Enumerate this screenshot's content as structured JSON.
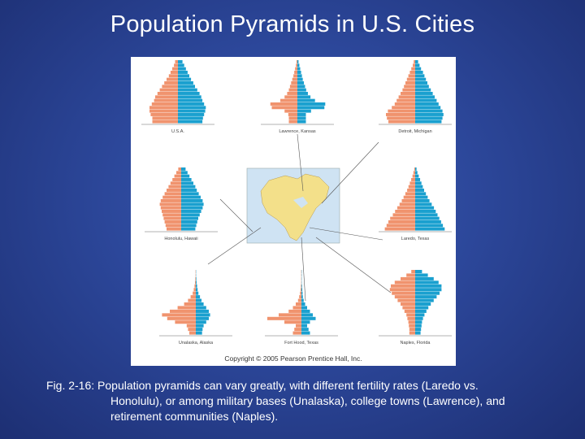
{
  "slide": {
    "title": "Population Pyramids in U.S. Cities"
  },
  "figure": {
    "copyright": "Copyright © 2005 Pearson Prentice Hall, Inc.",
    "colors": {
      "male": "#f0936e",
      "female": "#1aa0cf",
      "land": "#f3e08a",
      "water": "#cfe3f3"
    },
    "pyramids": [
      {
        "id": "usa",
        "label": "U.S.A.",
        "male": [
          4.5,
          4.5,
          4.8,
          5.0,
          5.0,
          4.6,
          4.2,
          4.0,
          3.6,
          3.2,
          2.8,
          2.4,
          2.0,
          1.6,
          1.3,
          1.0,
          0.7,
          0.5
        ],
        "female": [
          4.3,
          4.4,
          4.6,
          4.8,
          4.9,
          4.6,
          4.3,
          4.1,
          3.8,
          3.4,
          3.0,
          2.7,
          2.3,
          2.0,
          1.7,
          1.4,
          1.1,
          0.8
        ]
      },
      {
        "id": "lawrence",
        "label": "Lawrence, Kansas",
        "male": [
          3.0,
          3.0,
          3.2,
          4.5,
          9.0,
          9.5,
          6.0,
          4.5,
          3.6,
          3.0,
          2.6,
          2.2,
          1.8,
          1.4,
          1.1,
          0.8,
          0.5,
          0.3
        ],
        "female": [
          3.0,
          3.0,
          3.0,
          4.8,
          9.5,
          9.8,
          6.2,
          4.6,
          3.7,
          3.1,
          2.7,
          2.3,
          1.9,
          1.6,
          1.3,
          1.0,
          0.7,
          0.4
        ]
      },
      {
        "id": "detroit",
        "label": "Detroit, Michigan",
        "male": [
          5.5,
          5.8,
          6.0,
          5.6,
          4.8,
          4.2,
          3.8,
          3.4,
          3.0,
          2.6,
          2.3,
          2.0,
          1.7,
          1.4,
          1.1,
          0.8,
          0.5,
          0.3
        ],
        "female": [
          5.4,
          5.6,
          5.8,
          5.6,
          5.2,
          4.8,
          4.4,
          4.0,
          3.6,
          3.2,
          2.8,
          2.5,
          2.2,
          1.9,
          1.6,
          1.2,
          0.9,
          0.6
        ]
      },
      {
        "id": "honolulu",
        "label": "Honolulu, Hawaii",
        "male": [
          3.0,
          3.2,
          3.4,
          3.6,
          3.8,
          4.0,
          4.2,
          4.4,
          4.2,
          3.8,
          3.4,
          3.0,
          2.6,
          2.2,
          1.8,
          1.4,
          1.0,
          0.6
        ],
        "female": [
          2.9,
          3.1,
          3.3,
          3.5,
          3.8,
          4.1,
          4.4,
          4.6,
          4.4,
          4.0,
          3.6,
          3.2,
          2.9,
          2.5,
          2.1,
          1.7,
          1.3,
          0.9
        ]
      },
      {
        "id": "laredo",
        "label": "Laredo, Texas",
        "male": [
          6.8,
          6.4,
          6.0,
          5.6,
          5.0,
          4.5,
          4.0,
          3.5,
          3.0,
          2.6,
          2.2,
          1.8,
          1.5,
          1.2,
          0.9,
          0.6,
          0.4,
          0.2
        ],
        "female": [
          6.6,
          6.2,
          5.8,
          5.4,
          5.0,
          4.6,
          4.2,
          3.7,
          3.2,
          2.8,
          2.4,
          2.0,
          1.7,
          1.4,
          1.1,
          0.8,
          0.5,
          0.3
        ]
      },
      {
        "id": "unalaska",
        "label": "Unalaska, Alaska",
        "male": [
          2.5,
          3.0,
          3.5,
          8.0,
          11.0,
          13.0,
          10.0,
          7.0,
          4.5,
          3.0,
          2.0,
          1.2,
          0.8,
          0.5,
          0.3,
          0.2,
          0.1,
          0.1
        ],
        "female": [
          2.4,
          2.6,
          3.0,
          4.0,
          5.0,
          5.5,
          5.0,
          4.0,
          3.0,
          2.2,
          1.6,
          1.0,
          0.7,
          0.5,
          0.3,
          0.2,
          0.1,
          0.1
        ]
      },
      {
        "id": "fort-hood",
        "label": "Fort Hood, Texas",
        "male": [
          3.0,
          2.5,
          2.0,
          6.0,
          12.0,
          8.0,
          4.5,
          3.0,
          2.0,
          1.2,
          0.8,
          0.5,
          0.3,
          0.2,
          0.1,
          0.1,
          0.1,
          0.1
        ],
        "female": [
          3.0,
          2.5,
          2.0,
          3.0,
          5.0,
          4.0,
          3.0,
          2.0,
          1.3,
          0.8,
          0.5,
          0.4,
          0.3,
          0.2,
          0.1,
          0.1,
          0.1,
          0.1
        ]
      },
      {
        "id": "naples",
        "label": "Naples, Florida",
        "male": [
          1.2,
          1.2,
          1.3,
          1.4,
          1.6,
          1.8,
          2.2,
          2.6,
          3.0,
          3.6,
          4.2,
          4.8,
          5.2,
          5.0,
          4.2,
          3.0,
          1.8,
          0.8
        ],
        "female": [
          1.1,
          1.2,
          1.3,
          1.4,
          1.6,
          1.9,
          2.3,
          2.7,
          3.2,
          3.8,
          4.4,
          5.0,
          5.4,
          5.4,
          4.8,
          3.8,
          2.6,
          1.4
        ]
      }
    ]
  },
  "caption": {
    "line1": "Fig. 2-16: Population pyramids can vary greatly, with different fertility rates (Laredo vs.",
    "line2": "Honolulu), or among military bases (Unalaska), college towns (Lawrence), and",
    "line3": "retirement communities (Naples)."
  }
}
